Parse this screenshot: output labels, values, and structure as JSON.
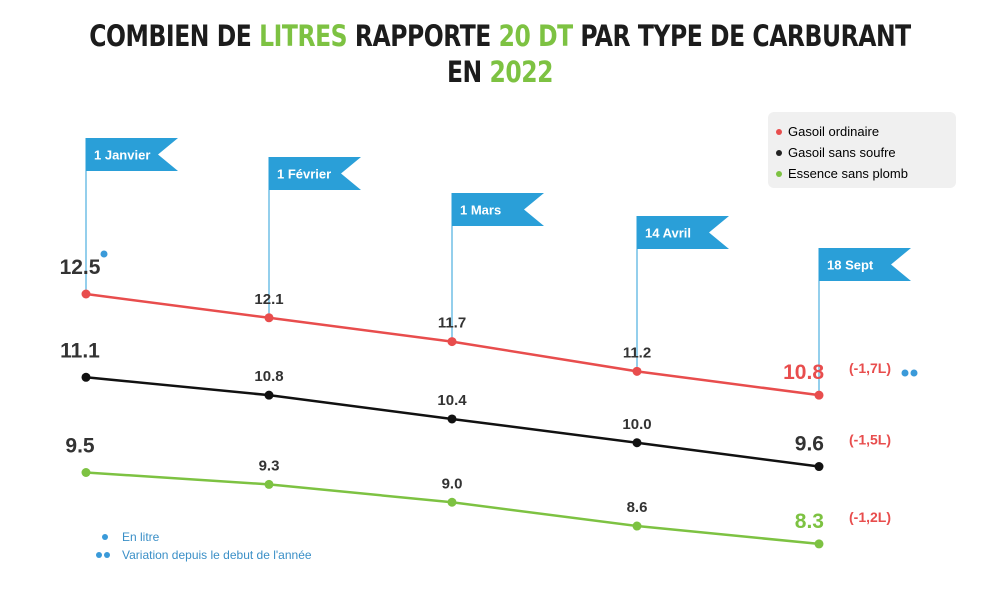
{
  "title": {
    "line1": [
      {
        "text": "COMBIEN DE ",
        "hl": false
      },
      {
        "text": "LITRES",
        "hl": true
      },
      {
        "text": " RAPPORTE ",
        "hl": false
      },
      {
        "text": "20 DT",
        "hl": true
      },
      {
        "text": " PAR TYPE DE CARBURANT",
        "hl": false
      }
    ],
    "line2": [
      {
        "text": "EN ",
        "hl": false
      },
      {
        "text": "2022",
        "hl": true
      }
    ]
  },
  "colors": {
    "gasoil_ordinaire": "#e84d4d",
    "gasoil_sans_soufre": "#111111",
    "essence_sans_plomb": "#7dc242",
    "flag": "#2a9fd8",
    "note_dot": "#3a9ad9",
    "value_text": "#333333"
  },
  "legend": {
    "items": [
      {
        "label": "Gasoil ordinaire",
        "color": "#e84d4d"
      },
      {
        "label": "Gasoil sans soufre",
        "color": "#222222"
      },
      {
        "label": "Essence sans plomb",
        "color": "#7dc242"
      }
    ]
  },
  "notes": [
    {
      "dots": 1,
      "text": "En litre"
    },
    {
      "dots": 2,
      "text": "Variation depuis le debut de l'année"
    }
  ],
  "chart_data": {
    "type": "line",
    "categories": [
      "1 Janvier",
      "1 Février",
      "1 Mars",
      "14 Avril",
      "18 Sept"
    ],
    "series": [
      {
        "name": "Gasoil ordinaire",
        "values": [
          12.5,
          12.1,
          11.7,
          11.2,
          10.8
        ],
        "labels": [
          "12.5",
          "12.1",
          "11.7",
          "11.2",
          "10.8"
        ],
        "variation": "(-1,7L)"
      },
      {
        "name": "Gasoil sans soufre",
        "values": [
          11.1,
          10.8,
          10.4,
          10.0,
          9.6
        ],
        "labels": [
          "11.1",
          "10.8",
          "10.4",
          "10.0",
          "9.6"
        ],
        "variation": "(-1,5L)"
      },
      {
        "name": "Essence sans plomb",
        "values": [
          9.5,
          9.3,
          9.0,
          8.6,
          8.3
        ],
        "labels": [
          "9.5",
          "9.3",
          "9.0",
          "8.6",
          "8.3"
        ],
        "variation": "(-1,2L)"
      }
    ],
    "unit": "En litre",
    "grid": false,
    "legend_position": "top-right"
  }
}
